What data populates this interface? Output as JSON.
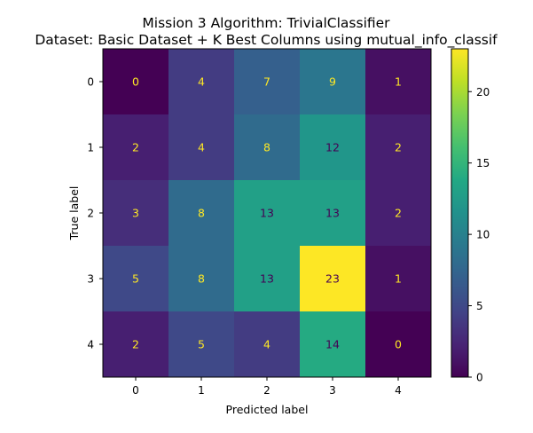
{
  "chart_data": {
    "type": "heatmap",
    "title_line1": "Mission 3 Algorithm: TrivialClassifier",
    "title_line2": "Dataset: Basic Dataset + K Best Columns using mutual_info_classif",
    "xlabel": "Predicted label",
    "ylabel": "True label",
    "x_categories": [
      "0",
      "1",
      "2",
      "3",
      "4"
    ],
    "y_categories": [
      "0",
      "1",
      "2",
      "3",
      "4"
    ],
    "values": [
      [
        0,
        4,
        7,
        9,
        1
      ],
      [
        2,
        4,
        8,
        12,
        2
      ],
      [
        3,
        8,
        13,
        13,
        2
      ],
      [
        5,
        8,
        13,
        23,
        1
      ],
      [
        2,
        5,
        4,
        14,
        0
      ]
    ],
    "colormap": "viridis",
    "colorbar": {
      "range": [
        0,
        23
      ],
      "ticks": [
        0,
        5,
        10,
        15,
        20
      ]
    },
    "text_colors": {
      "dark_cell": "#fde725",
      "light_cell": "#440154"
    }
  }
}
